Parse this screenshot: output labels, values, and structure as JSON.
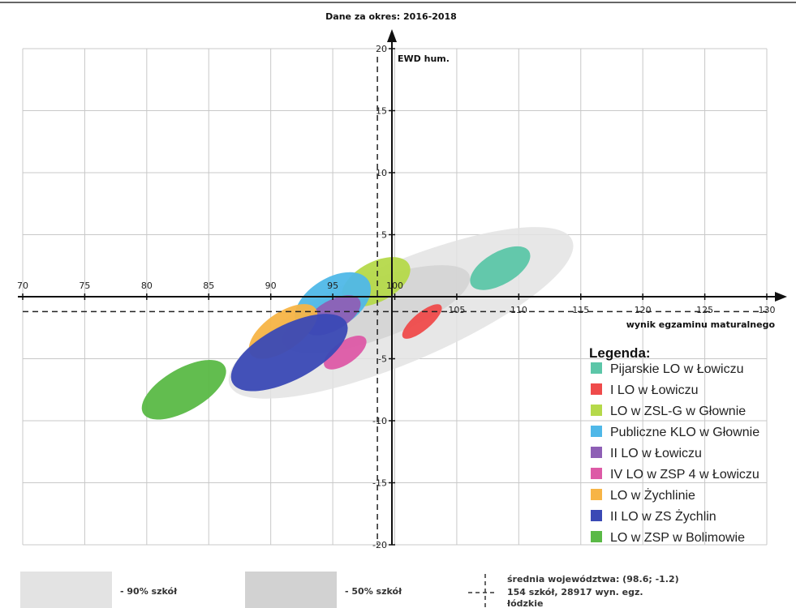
{
  "chart_data": {
    "type": "scatter",
    "title": "Dane za okres: 2016-2018",
    "xlabel": "wynik egzaminu maturalnego",
    "ylabel": "EWD hum.",
    "xlim": [
      70,
      130
    ],
    "ylim": [
      -20,
      20
    ],
    "x_ticks": [
      70,
      75,
      80,
      85,
      90,
      95,
      100,
      105,
      110,
      115,
      120,
      125,
      130
    ],
    "y_ticks": [
      -20,
      -15,
      -10,
      -5,
      0,
      5,
      10,
      15,
      20
    ],
    "grid": true,
    "legend_title": "Legenda:",
    "legend_position": "right",
    "reference_point": {
      "x": 98.6,
      "y": -1.2
    },
    "reference_regions": [
      {
        "label": "- 90% szkół",
        "color": "#e3e3e3",
        "center": [
          100.5,
          -1.3
        ],
        "rx": 15,
        "ry": 4,
        "angle_deg": -23
      },
      {
        "label": "- 50% szkół",
        "color": "#d2d2d2",
        "center": [
          98.5,
          -1.0
        ],
        "rx": 8,
        "ry": 2.4,
        "angle_deg": -20
      }
    ],
    "series": [
      {
        "name": "Pijarskie LO w Łowiczu",
        "color": "#5cc6a8",
        "center": [
          108.5,
          2.3
        ],
        "rx": 2.7,
        "ry": 1.3,
        "angle_deg": -30
      },
      {
        "name": "I LO w Łowiczu",
        "color": "#ef4b4b",
        "center": [
          102.2,
          -2.0
        ],
        "rx": 2.0,
        "ry": 0.7,
        "angle_deg": -40
      },
      {
        "name": "LO w ZSL-G w Głownie",
        "color": "#b5d94a",
        "center": [
          98.5,
          1.2
        ],
        "rx": 3.0,
        "ry": 1.6,
        "angle_deg": -28
      },
      {
        "name": "Publiczne KLO w Głownie",
        "color": "#4fb8e8",
        "center": [
          95.0,
          -0.5
        ],
        "rx": 3.4,
        "ry": 2.0,
        "angle_deg": -32
      },
      {
        "name": "II LO w Łowiczu",
        "color": "#8e5fb5",
        "center": [
          95.0,
          -1.5
        ],
        "rx": 2.5,
        "ry": 1.2,
        "angle_deg": -30
      },
      {
        "name": "IV LO w ZSP 4 w Łowiczu",
        "color": "#dd5aa6",
        "center": [
          96.0,
          -4.5
        ],
        "rx": 2.0,
        "ry": 0.9,
        "angle_deg": -35
      },
      {
        "name": "LO w Żychlinie",
        "color": "#f7b446",
        "center": [
          91.0,
          -2.8
        ],
        "rx": 3.2,
        "ry": 1.5,
        "angle_deg": -35
      },
      {
        "name": "II LO w ZS Żychlin",
        "color": "#3a49b5",
        "center": [
          91.5,
          -4.5
        ],
        "rx": 5.2,
        "ry": 2.2,
        "angle_deg": -28
      },
      {
        "name": "LO w ZSP w Bolimowie",
        "color": "#5ab946",
        "center": [
          83.0,
          -7.5
        ],
        "rx": 3.8,
        "ry": 1.7,
        "angle_deg": -30
      }
    ],
    "footer": {
      "label_90": "- 90% szkół",
      "label_50": "- 50% szkół",
      "avg_line1": "średnia województwa: (98.6; -1.2)",
      "avg_line2": "154 szkół, 28917 wyn. egz.",
      "avg_line3": "łódzkie"
    }
  }
}
